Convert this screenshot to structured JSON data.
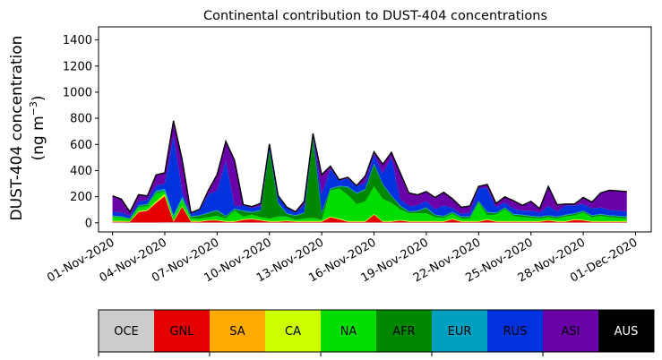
{
  "chart_data": {
    "type": "area",
    "stacked": true,
    "title": "Continental contribution to DUST-404 concentrations",
    "ylabel_line1": "DUST-404 concentration",
    "ylabel_line2": "(ng m",
    "ylabel_unit_exp": "−3",
    "ylabel_close": ")",
    "ylim": [
      -70,
      1500
    ],
    "yticks": [
      0,
      200,
      400,
      600,
      800,
      1000,
      1200,
      1400
    ],
    "ytick_labels": [
      "0",
      "200",
      "400",
      "600",
      "800",
      "1000",
      "1200",
      "1400"
    ],
    "xlim": [
      -0.8,
      30.9
    ],
    "xticks": [
      0,
      3,
      6,
      9,
      12,
      15,
      18,
      21,
      24,
      27,
      30
    ],
    "xtick_labels": [
      "01-Nov-2020",
      "04-Nov-2020",
      "07-Nov-2020",
      "10-Nov-2020",
      "13-Nov-2020",
      "16-Nov-2020",
      "19-Nov-2020",
      "22-Nov-2020",
      "25-Nov-2020",
      "28-Nov-2020",
      "01-Dec-2020"
    ],
    "x_days": [
      0,
      0.5,
      1,
      1.5,
      2,
      2.5,
      3,
      3.5,
      4,
      4.5,
      5,
      5.5,
      6,
      6.5,
      7,
      7.5,
      8,
      8.5,
      9,
      9.5,
      10,
      10.5,
      11,
      11.5,
      12,
      12.5,
      13,
      13.5,
      14,
      14.5,
      15,
      15.5,
      16,
      16.5,
      17,
      17.5,
      18,
      18.5,
      19,
      19.5,
      20,
      20.5,
      21,
      21.5,
      22,
      22.5,
      23,
      23.5,
      24,
      24.5,
      25,
      25.5,
      26,
      26.5,
      27,
      27.5,
      28,
      28.5,
      29,
      29.5
    ],
    "series": [
      {
        "name": "OCE",
        "color": "#cccccc",
        "values": [
          3,
          3,
          2,
          2,
          2,
          2,
          3,
          3,
          3,
          3,
          2,
          2,
          2,
          2,
          2,
          2,
          2,
          2,
          2,
          2,
          2,
          2,
          2,
          2,
          2,
          2,
          2,
          2,
          2,
          2,
          2,
          2,
          2,
          2,
          2,
          2,
          2,
          2,
          2,
          2,
          2,
          2,
          2,
          2,
          2,
          2,
          2,
          2,
          2,
          2,
          2,
          2,
          2,
          2,
          2,
          2,
          2,
          2,
          2,
          2
        ]
      },
      {
        "name": "GNL",
        "color": "#e50000",
        "values": [
          5,
          5,
          5,
          80,
          90,
          150,
          200,
          5,
          120,
          5,
          5,
          15,
          15,
          5,
          5,
          20,
          25,
          15,
          5,
          5,
          10,
          5,
          5,
          5,
          5,
          40,
          25,
          5,
          5,
          5,
          60,
          5,
          5,
          15,
          5,
          5,
          5,
          5,
          5,
          25,
          5,
          5,
          5,
          20,
          5,
          5,
          5,
          5,
          5,
          5,
          15,
          5,
          5,
          20,
          15,
          5,
          5,
          5,
          5,
          5
        ]
      },
      {
        "name": "SA",
        "color": "#ffaa00",
        "values": [
          2,
          2,
          1,
          2,
          2,
          3,
          3,
          2,
          2,
          2,
          1,
          1,
          1,
          1,
          1,
          1,
          1,
          1,
          1,
          1,
          1,
          1,
          1,
          1,
          1,
          1,
          1,
          1,
          1,
          1,
          1,
          1,
          1,
          1,
          1,
          1,
          1,
          1,
          1,
          1,
          1,
          1,
          1,
          1,
          1,
          1,
          1,
          1,
          1,
          1,
          1,
          1,
          1,
          1,
          1,
          1,
          1,
          1,
          1,
          1
        ]
      },
      {
        "name": "CA",
        "color": "#ccff00",
        "values": [
          5,
          5,
          3,
          5,
          5,
          10,
          15,
          5,
          5,
          5,
          5,
          5,
          5,
          5,
          5,
          5,
          5,
          5,
          5,
          5,
          5,
          5,
          5,
          5,
          5,
          5,
          5,
          5,
          5,
          5,
          5,
          5,
          5,
          5,
          5,
          5,
          5,
          5,
          5,
          5,
          5,
          5,
          5,
          5,
          5,
          5,
          5,
          5,
          5,
          5,
          5,
          5,
          5,
          5,
          5,
          5,
          5,
          5,
          5,
          5
        ]
      },
      {
        "name": "NA",
        "color": "#00dd00",
        "values": [
          30,
          25,
          15,
          30,
          30,
          60,
          20,
          25,
          50,
          20,
          20,
          20,
          30,
          20,
          80,
          20,
          30,
          20,
          20,
          35,
          30,
          10,
          20,
          25,
          10,
          200,
          230,
          200,
          130,
          150,
          210,
          170,
          140,
          80,
          60,
          60,
          60,
          30,
          25,
          35,
          20,
          20,
          140,
          30,
          50,
          90,
          40,
          30,
          25,
          20,
          20,
          20,
          35,
          30,
          55,
          30,
          40,
          30,
          25,
          20
        ]
      },
      {
        "name": "AFR",
        "color": "#008800",
        "values": [
          5,
          5,
          5,
          10,
          10,
          10,
          5,
          5,
          5,
          10,
          20,
          30,
          40,
          15,
          10,
          40,
          15,
          50,
          520,
          100,
          20,
          30,
          40,
          610,
          50,
          10,
          15,
          60,
          80,
          90,
          170,
          110,
          50,
          25,
          10,
          15,
          40,
          15,
          10,
          10,
          10,
          10,
          10,
          20,
          10,
          10,
          10,
          15,
          10,
          10,
          10,
          10,
          10,
          10,
          10,
          10,
          10,
          10,
          10,
          10
        ]
      },
      {
        "name": "EUR",
        "color": "#00a0c0",
        "values": [
          5,
          5,
          3,
          5,
          5,
          10,
          15,
          15,
          15,
          5,
          5,
          5,
          5,
          5,
          5,
          5,
          5,
          5,
          5,
          5,
          5,
          5,
          5,
          5,
          5,
          5,
          5,
          5,
          5,
          5,
          5,
          5,
          5,
          5,
          5,
          5,
          5,
          5,
          5,
          5,
          5,
          5,
          5,
          5,
          5,
          5,
          5,
          5,
          5,
          5,
          5,
          5,
          5,
          5,
          5,
          5,
          5,
          5,
          5,
          5
        ]
      },
      {
        "name": "RUS",
        "color": "#0033dd",
        "values": [
          30,
          30,
          20,
          30,
          30,
          40,
          40,
          600,
          40,
          20,
          40,
          140,
          150,
          420,
          20,
          40,
          30,
          30,
          40,
          50,
          40,
          20,
          60,
          20,
          140,
          150,
          40,
          60,
          50,
          50,
          70,
          80,
          290,
          50,
          40,
          40,
          50,
          40,
          80,
          30,
          20,
          30,
          100,
          180,
          40,
          40,
          40,
          30,
          40,
          30,
          70,
          40,
          70,
          60,
          50,
          50,
          50,
          40,
          40,
          40
        ]
      },
      {
        "name": "ASI",
        "color": "#6a00a8",
        "values": [
          120,
          100,
          30,
          50,
          30,
          80,
          80,
          120,
          240,
          5,
          5,
          30,
          120,
          150,
          350,
          5,
          10,
          20,
          5,
          5,
          5,
          5,
          25,
          10,
          150,
          20,
          5,
          10,
          5,
          50,
          20,
          70,
          40,
          200,
          100,
          80,
          70,
          90,
          100,
          70,
          50,
          50,
          10,
          30,
          30,
          40,
          60,
          40,
          70,
          30,
          150,
          50,
          10,
          10,
          50,
          50,
          110,
          150,
          150,
          150
        ]
      },
      {
        "name": "AUS",
        "color": "#000000",
        "values": [
          2,
          2,
          1,
          2,
          2,
          2,
          2,
          2,
          2,
          2,
          1,
          1,
          1,
          1,
          1,
          1,
          1,
          1,
          1,
          1,
          1,
          1,
          1,
          1,
          1,
          1,
          1,
          1,
          1,
          1,
          1,
          1,
          1,
          1,
          1,
          1,
          1,
          1,
          1,
          1,
          1,
          1,
          1,
          1,
          1,
          1,
          1,
          1,
          1,
          1,
          1,
          1,
          1,
          1,
          1,
          1,
          1,
          1,
          1,
          1
        ]
      }
    ],
    "legend": {
      "placement": "bottom-colorbar",
      "items": [
        {
          "label": "OCE",
          "color": "#cccccc",
          "text_color": "#000000"
        },
        {
          "label": "GNL",
          "color": "#e50000",
          "text_color": "#000000"
        },
        {
          "label": "SA",
          "color": "#ffaa00",
          "text_color": "#000000"
        },
        {
          "label": "CA",
          "color": "#ccff00",
          "text_color": "#000000"
        },
        {
          "label": "NA",
          "color": "#00dd00",
          "text_color": "#000000"
        },
        {
          "label": "AFR",
          "color": "#008800",
          "text_color": "#000000"
        },
        {
          "label": "EUR",
          "color": "#00a0c0",
          "text_color": "#000000"
        },
        {
          "label": "RUS",
          "color": "#0033dd",
          "text_color": "#000000"
        },
        {
          "label": "ASI",
          "color": "#6a00a8",
          "text_color": "#000000"
        },
        {
          "label": "AUS",
          "color": "#000000",
          "text_color": "#ffffff"
        }
      ]
    },
    "grid": false
  }
}
